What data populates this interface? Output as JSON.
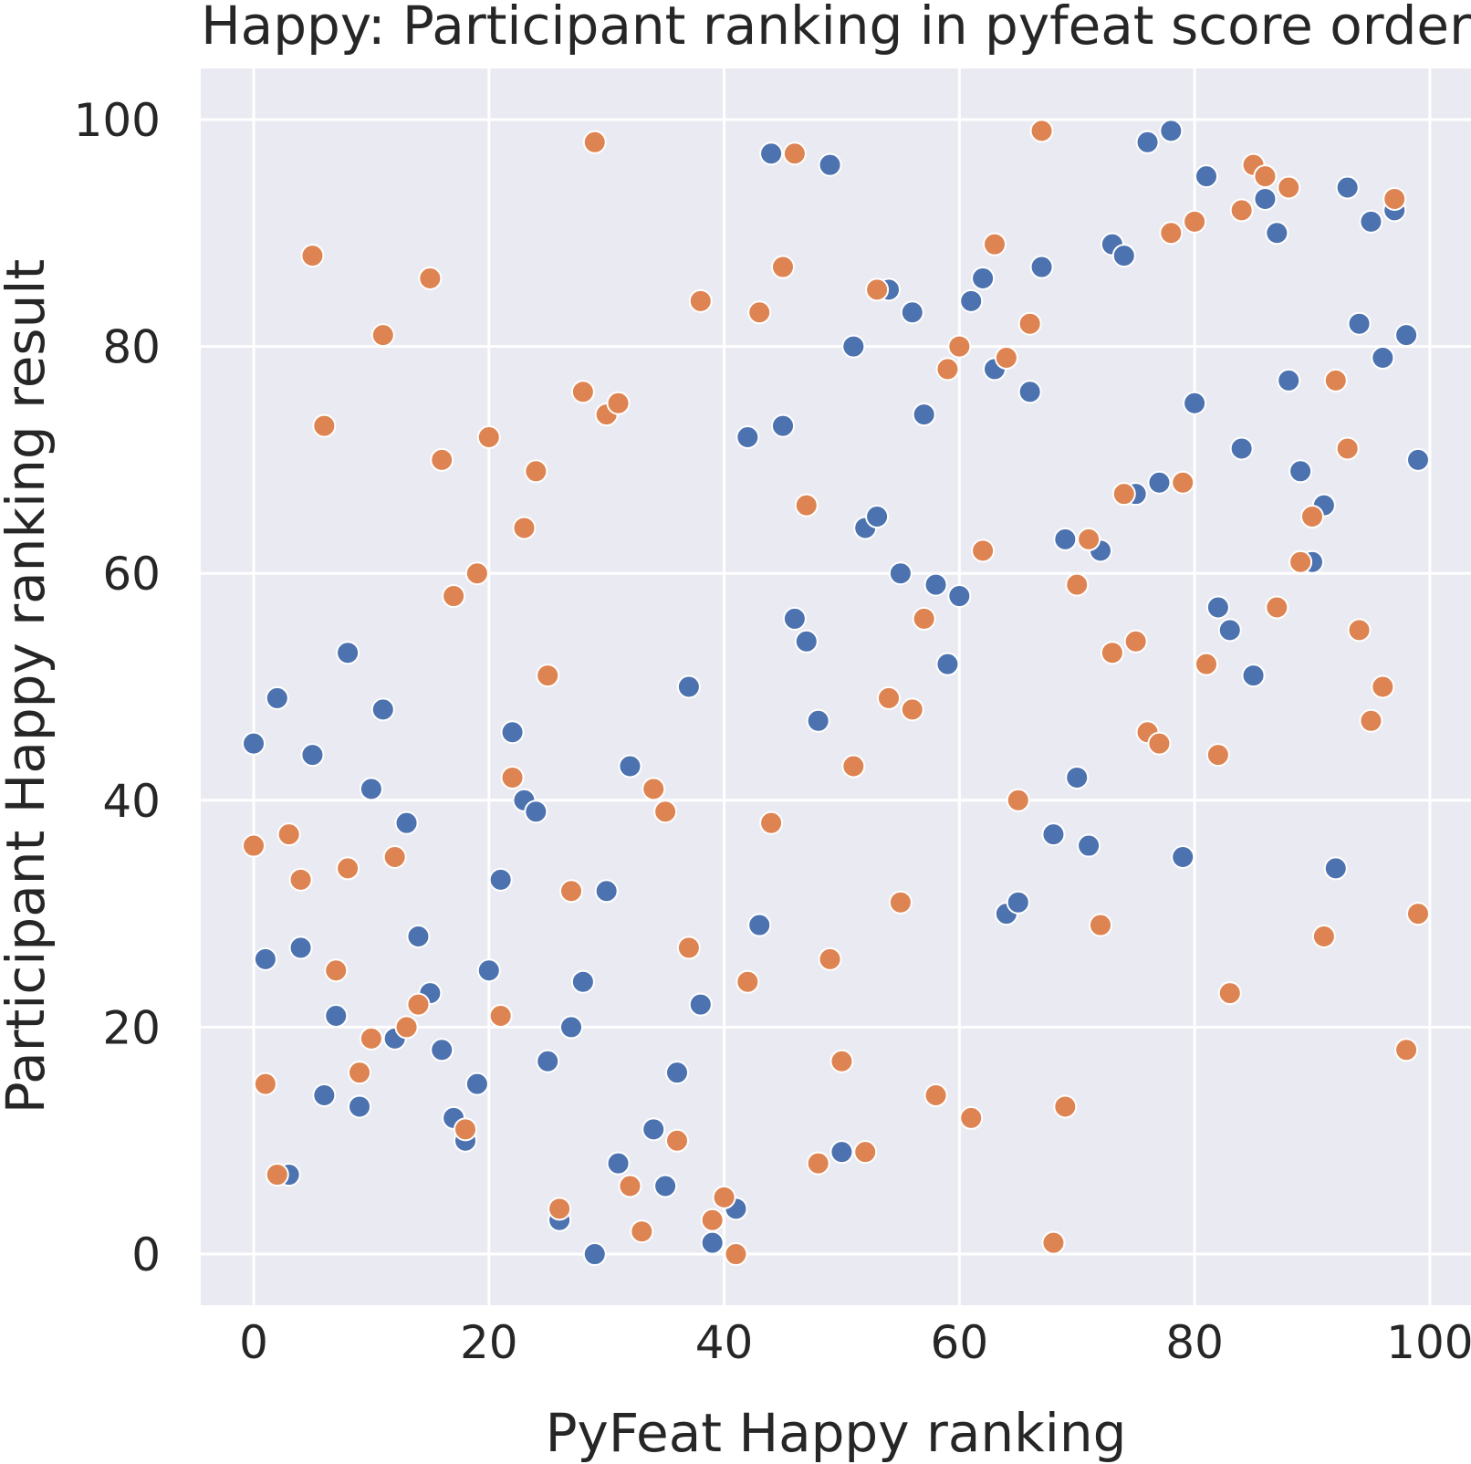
{
  "chart_data": {
    "type": "scatter",
    "title": "Happy: Participant ranking in pyfeat score order",
    "xlabel": "PyFeat Happy ranking",
    "ylabel": "Participant Happy ranking result",
    "xlim": [
      -4.5,
      103.5
    ],
    "ylim": [
      -4.5,
      104.5
    ],
    "xticks": [
      0,
      20,
      40,
      60,
      80,
      100
    ],
    "yticks": [
      0,
      20,
      40,
      60,
      80,
      100
    ],
    "grid": true,
    "legend": "none",
    "colors": [
      "#4c72b0",
      "#dd8452"
    ],
    "series": [
      {
        "color": "#4c72b0",
        "points": [
          [
            0,
            45
          ],
          [
            1,
            26
          ],
          [
            2,
            49
          ],
          [
            3,
            7
          ],
          [
            4,
            27
          ],
          [
            5,
            44
          ],
          [
            6,
            14
          ],
          [
            7,
            21
          ],
          [
            8,
            53
          ],
          [
            9,
            13
          ],
          [
            10,
            41
          ],
          [
            11,
            48
          ],
          [
            12,
            19
          ],
          [
            13,
            38
          ],
          [
            14,
            28
          ],
          [
            15,
            23
          ],
          [
            16,
            18
          ],
          [
            17,
            12
          ],
          [
            18,
            10
          ],
          [
            19,
            15
          ],
          [
            20,
            25
          ],
          [
            21,
            33
          ],
          [
            22,
            46
          ],
          [
            23,
            40
          ],
          [
            24,
            39
          ],
          [
            25,
            17
          ],
          [
            26,
            3
          ],
          [
            27,
            20
          ],
          [
            28,
            24
          ],
          [
            29,
            0
          ],
          [
            30,
            32
          ],
          [
            31,
            8
          ],
          [
            32,
            43
          ],
          [
            34,
            11
          ],
          [
            35,
            6
          ],
          [
            36,
            16
          ],
          [
            37,
            50
          ],
          [
            38,
            22
          ],
          [
            39,
            1
          ],
          [
            41,
            4
          ],
          [
            42,
            72
          ],
          [
            43,
            29
          ],
          [
            44,
            97
          ],
          [
            45,
            73
          ],
          [
            46,
            56
          ],
          [
            47,
            54
          ],
          [
            48,
            47
          ],
          [
            49,
            96
          ],
          [
            50,
            9
          ],
          [
            51,
            80
          ],
          [
            52,
            64
          ],
          [
            53,
            65
          ],
          [
            54,
            85
          ],
          [
            55,
            60
          ],
          [
            56,
            83
          ],
          [
            57,
            74
          ],
          [
            58,
            59
          ],
          [
            59,
            52
          ],
          [
            60,
            58
          ],
          [
            61,
            84
          ],
          [
            62,
            86
          ],
          [
            63,
            78
          ],
          [
            64,
            30
          ],
          [
            65,
            31
          ],
          [
            66,
            76
          ],
          [
            67,
            87
          ],
          [
            68,
            37
          ],
          [
            69,
            63
          ],
          [
            70,
            42
          ],
          [
            71,
            36
          ],
          [
            72,
            62
          ],
          [
            73,
            89
          ],
          [
            74,
            88
          ],
          [
            75,
            67
          ],
          [
            77,
            68
          ],
          [
            78,
            99
          ],
          [
            76,
            98
          ],
          [
            79,
            35
          ],
          [
            80,
            75
          ],
          [
            81,
            95
          ],
          [
            82,
            57
          ],
          [
            83,
            55
          ],
          [
            84,
            71
          ],
          [
            85,
            51
          ],
          [
            86,
            93
          ],
          [
            87,
            90
          ],
          [
            88,
            77
          ],
          [
            89,
            69
          ],
          [
            90,
            61
          ],
          [
            91,
            66
          ],
          [
            92,
            34
          ],
          [
            93,
            94
          ],
          [
            94,
            82
          ],
          [
            95,
            91
          ],
          [
            96,
            79
          ],
          [
            97,
            92
          ],
          [
            98,
            81
          ],
          [
            99,
            70
          ]
        ]
      },
      {
        "color": "#dd8452",
        "points": [
          [
            0,
            36
          ],
          [
            1,
            15
          ],
          [
            2,
            7
          ],
          [
            3,
            37
          ],
          [
            4,
            33
          ],
          [
            5,
            88
          ],
          [
            6,
            73
          ],
          [
            7,
            25
          ],
          [
            8,
            34
          ],
          [
            9,
            16
          ],
          [
            10,
            19
          ],
          [
            11,
            81
          ],
          [
            12,
            35
          ],
          [
            13,
            20
          ],
          [
            14,
            22
          ],
          [
            15,
            86
          ],
          [
            16,
            70
          ],
          [
            17,
            58
          ],
          [
            18,
            11
          ],
          [
            19,
            60
          ],
          [
            20,
            72
          ],
          [
            21,
            21
          ],
          [
            22,
            42
          ],
          [
            23,
            64
          ],
          [
            24,
            69
          ],
          [
            25,
            51
          ],
          [
            26,
            4
          ],
          [
            27,
            32
          ],
          [
            28,
            76
          ],
          [
            29,
            98
          ],
          [
            30,
            74
          ],
          [
            31,
            75
          ],
          [
            32,
            6
          ],
          [
            33,
            2
          ],
          [
            34,
            41
          ],
          [
            35,
            39
          ],
          [
            36,
            10
          ],
          [
            37,
            27
          ],
          [
            38,
            84
          ],
          [
            39,
            3
          ],
          [
            40,
            5
          ],
          [
            41,
            0
          ],
          [
            42,
            24
          ],
          [
            43,
            83
          ],
          [
            44,
            38
          ],
          [
            45,
            87
          ],
          [
            46,
            97
          ],
          [
            47,
            66
          ],
          [
            48,
            8
          ],
          [
            49,
            26
          ],
          [
            50,
            17
          ],
          [
            51,
            43
          ],
          [
            52,
            9
          ],
          [
            53,
            85
          ],
          [
            54,
            49
          ],
          [
            55,
            31
          ],
          [
            56,
            48
          ],
          [
            57,
            56
          ],
          [
            58,
            14
          ],
          [
            59,
            78
          ],
          [
            60,
            80
          ],
          [
            61,
            12
          ],
          [
            62,
            62
          ],
          [
            63,
            89
          ],
          [
            64,
            79
          ],
          [
            65,
            40
          ],
          [
            66,
            82
          ],
          [
            67,
            99
          ],
          [
            68,
            1
          ],
          [
            69,
            13
          ],
          [
            70,
            59
          ],
          [
            71,
            63
          ],
          [
            72,
            29
          ],
          [
            73,
            53
          ],
          [
            74,
            67
          ],
          [
            75,
            54
          ],
          [
            76,
            46
          ],
          [
            77,
            45
          ],
          [
            78,
            90
          ],
          [
            79,
            68
          ],
          [
            80,
            91
          ],
          [
            81,
            52
          ],
          [
            82,
            44
          ],
          [
            83,
            23
          ],
          [
            84,
            92
          ],
          [
            85,
            96
          ],
          [
            86,
            95
          ],
          [
            87,
            57
          ],
          [
            88,
            94
          ],
          [
            89,
            61
          ],
          [
            90,
            65
          ],
          [
            91,
            28
          ],
          [
            92,
            77
          ],
          [
            93,
            71
          ],
          [
            94,
            55
          ],
          [
            95,
            47
          ],
          [
            96,
            50
          ],
          [
            97,
            93
          ],
          [
            98,
            18
          ],
          [
            99,
            30
          ]
        ]
      }
    ]
  }
}
